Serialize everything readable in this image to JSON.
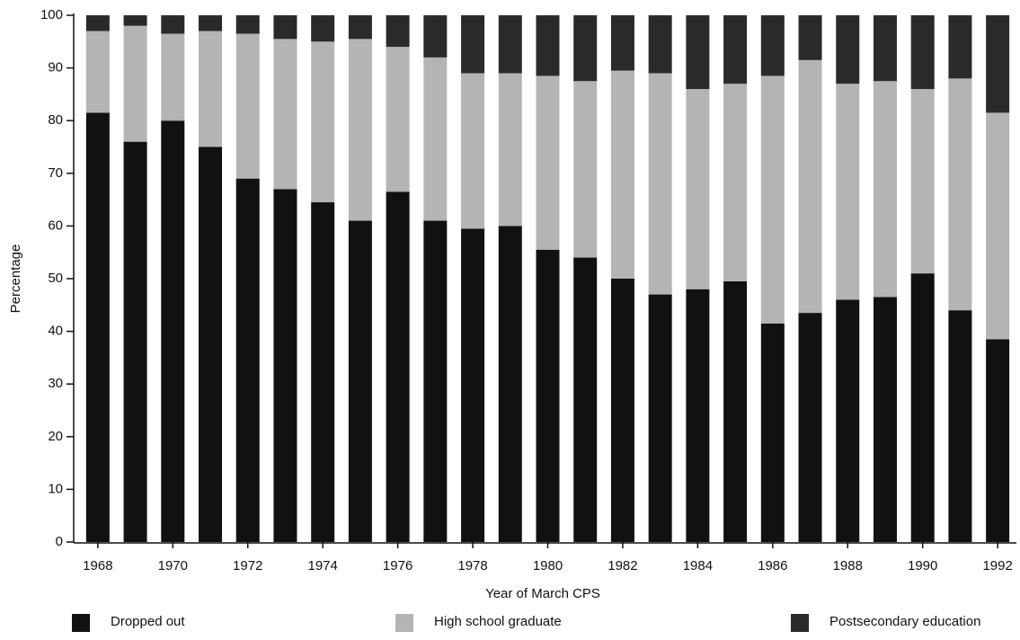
{
  "chart_data": {
    "type": "stacked_bar",
    "x_label": "Year of March CPS",
    "y_label": "Percentage",
    "categories": [
      "1968",
      null,
      "1970",
      null,
      "1972",
      null,
      "1974",
      null,
      "1976",
      null,
      "1978",
      null,
      "1980",
      null,
      "1982",
      null,
      "1984",
      null,
      "1986",
      null,
      "1988",
      null,
      "1990",
      null,
      "1992"
    ],
    "series": [
      {
        "name": "Dropped out",
        "color": "#111111",
        "values": [
          81.5,
          76,
          80,
          75,
          69,
          67,
          64.5,
          61,
          66.5,
          61,
          59.5,
          60,
          55.5,
          54,
          50,
          47,
          48,
          49.5,
          41.5,
          43.5,
          46,
          46.5,
          51,
          44,
          38.5
        ]
      },
      {
        "name": "High school graduate",
        "color": "#b4b4b4",
        "values": [
          15.5,
          22,
          16.5,
          22,
          27.5,
          28.5,
          30.5,
          34.5,
          27.5,
          31,
          29.5,
          29,
          33,
          33.5,
          39.5,
          42,
          38,
          37.5,
          47,
          48,
          41,
          41,
          35,
          44,
          43
        ]
      },
      {
        "name": "Postsecondary education",
        "color": "#2a2a2a",
        "values": [
          3,
          2,
          3.5,
          3,
          3.5,
          4.5,
          5,
          4.5,
          6,
          8,
          11,
          11,
          11.5,
          12.5,
          10.5,
          11,
          14,
          13,
          11.5,
          8.5,
          13,
          12.5,
          14,
          12,
          18.5
        ]
      }
    ],
    "ylim": [
      0,
      100
    ],
    "yticks": [
      0,
      10,
      20,
      30,
      40,
      50,
      60,
      70,
      80,
      90,
      100
    ],
    "legend": "bottom",
    "grid": false
  }
}
